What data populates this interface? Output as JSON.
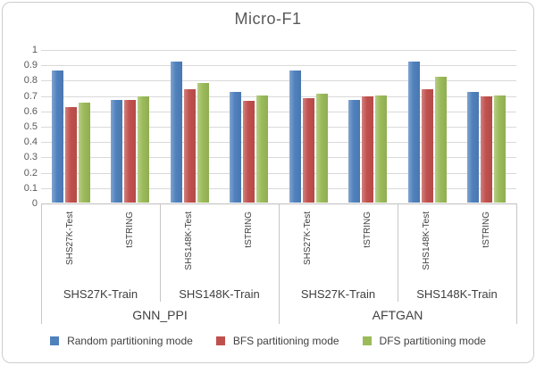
{
  "title": "Micro-F1",
  "chart_data": {
    "type": "bar",
    "title": "Micro-F1",
    "xlabel": "",
    "ylabel": "",
    "ylim": [
      0,
      1
    ],
    "ytick_step": 0.1,
    "ytick_labels": [
      "1",
      "0.9",
      "0.8",
      "0.7",
      "0.6",
      "0.5",
      "0.4",
      "0.3",
      "0.2",
      "0.1",
      "0"
    ],
    "grid": true,
    "legend_position": "bottom",
    "categories": [
      "SHS27K-Test",
      "tSTRING",
      "SHS148K-Test",
      "tSTRING",
      "SHS27K-Test",
      "tSTRING",
      "SHS148K-Test",
      "tSTRING"
    ],
    "category_groups": [
      {
        "label": "SHS27K-Train",
        "from": 0,
        "to": 2
      },
      {
        "label": "SHS148K-Train",
        "from": 2,
        "to": 4
      },
      {
        "label": "SHS27K-Train",
        "from": 4,
        "to": 6
      },
      {
        "label": "SHS148K-Train",
        "from": 6,
        "to": 8
      }
    ],
    "category_supergroups": [
      {
        "label": "GNN_PPI",
        "from": 0,
        "to": 4
      },
      {
        "label": "AFTGAN",
        "from": 4,
        "to": 8
      }
    ],
    "series": [
      {
        "name": "Random partitioning mode",
        "color": "#4F81BD",
        "values": [
          0.86,
          0.67,
          0.92,
          0.72,
          0.86,
          0.67,
          0.92,
          0.72
        ]
      },
      {
        "name": "BFS partitioning mode",
        "color": "#C0504D",
        "values": [
          0.62,
          0.67,
          0.74,
          0.66,
          0.68,
          0.69,
          0.74,
          0.69
        ]
      },
      {
        "name": "DFS partitioning mode",
        "color": "#9BBB59",
        "values": [
          0.65,
          0.69,
          0.78,
          0.7,
          0.71,
          0.7,
          0.82,
          0.7
        ]
      }
    ]
  },
  "styles": {
    "title_color": "#595959",
    "axis_text_color": "#595959",
    "category_text_color": "#404040",
    "gridline_color": "#D9D9D9",
    "axis_line_color": "#BFBFBF",
    "frame_border_color": "#CDCDCD",
    "background": "#FFFFFF"
  }
}
